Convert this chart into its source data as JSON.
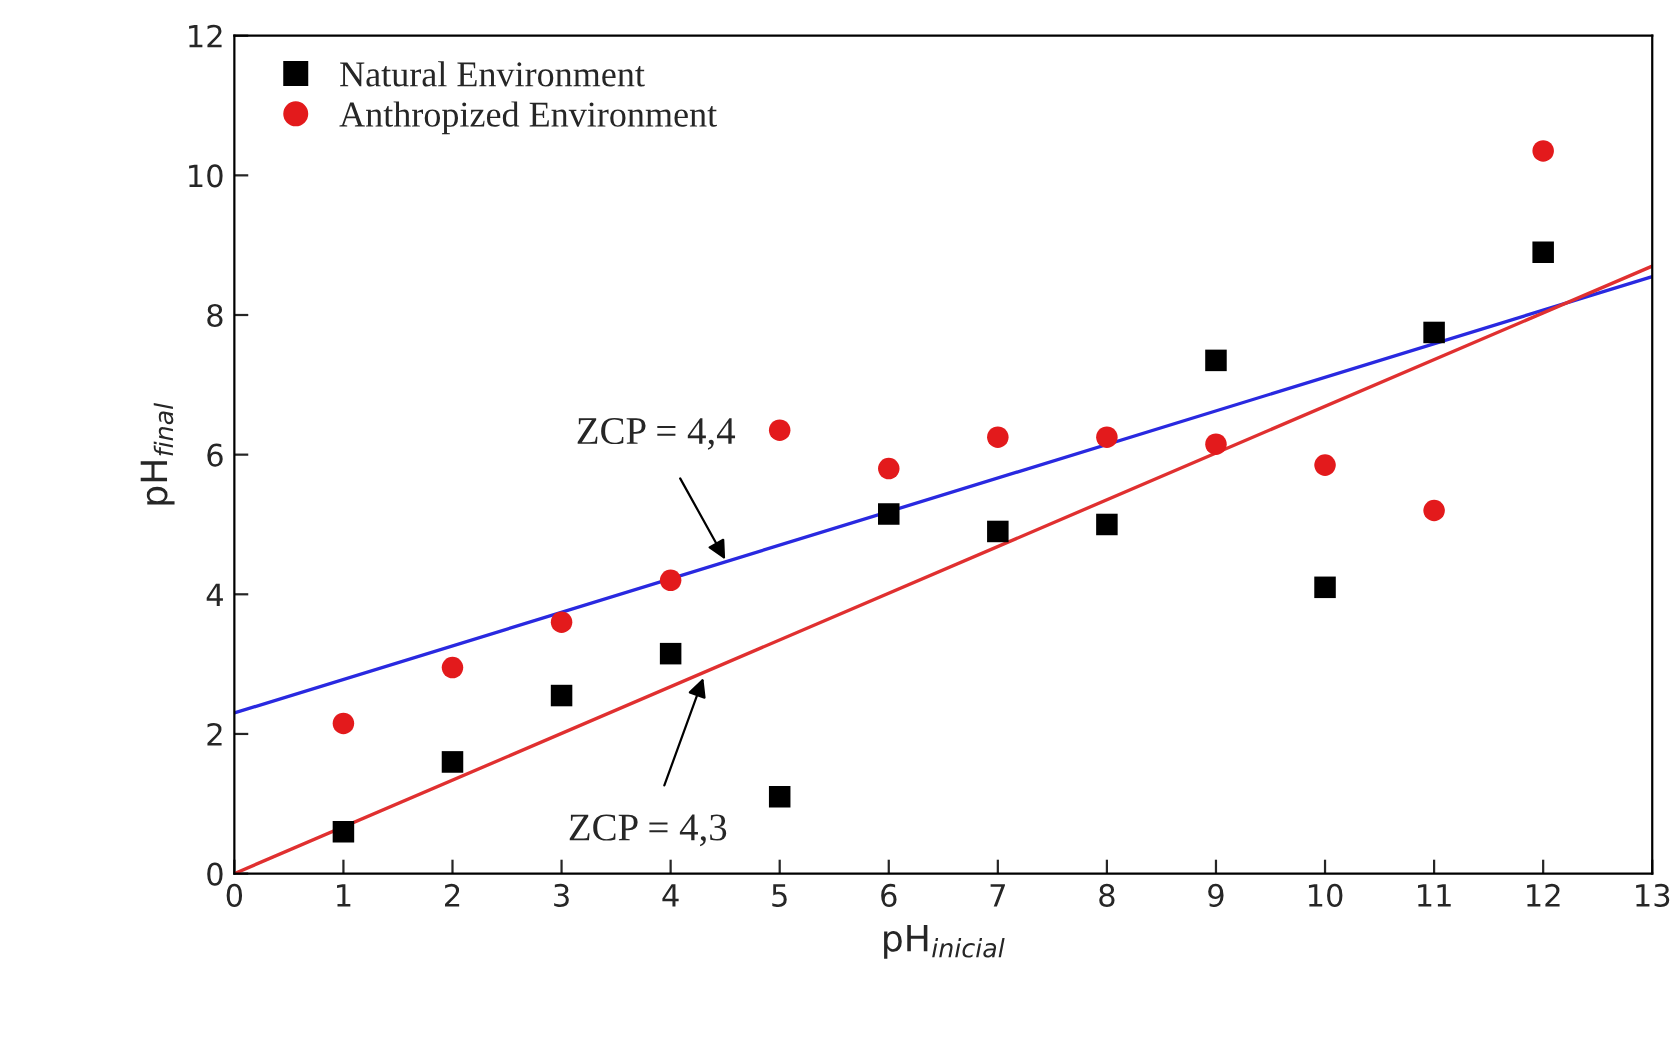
{
  "chart_data": {
    "type": "scatter",
    "xlabel": "pH$_{inicial}$",
    "ylabel": "pH$_{final}$",
    "xlim": [
      0,
      13
    ],
    "ylim": [
      0,
      12
    ],
    "xticks": [
      0,
      1,
      2,
      3,
      4,
      5,
      6,
      7,
      8,
      9,
      10,
      11,
      12,
      13
    ],
    "yticks": [
      0,
      2,
      4,
      6,
      8,
      10,
      12
    ],
    "grid": false,
    "legend": "top left",
    "series": [
      {
        "name": "Natural Environment",
        "marker": "square",
        "color": "#000000",
        "x": [
          1,
          2,
          3,
          4,
          5,
          6,
          7,
          8,
          9,
          10,
          11,
          12
        ],
        "values": [
          0.6,
          1.6,
          2.55,
          3.15,
          1.1,
          5.15,
          4.9,
          5.0,
          7.35,
          4.1,
          7.75,
          8.9
        ]
      },
      {
        "name": "Anthropized Environment",
        "marker": "circle",
        "color": "#e31a1c",
        "x": [
          1,
          2,
          3,
          4,
          5,
          6,
          7,
          8,
          9,
          10,
          11,
          12
        ],
        "values": [
          2.15,
          2.95,
          3.6,
          4.2,
          6.35,
          5.8,
          6.25,
          6.25,
          6.15,
          5.85,
          5.2,
          10.35
        ]
      },
      {
        "type": "line",
        "color": "#2929e0",
        "x": [
          0,
          13
        ],
        "values": [
          2.3,
          8.55
        ]
      },
      {
        "type": "line",
        "color": "#e03030",
        "x": [
          0,
          13
        ],
        "values": [
          0,
          8.7
        ]
      }
    ],
    "annotations": [
      {
        "text": "ZCP = 4,4",
        "x": 4.5,
        "y": 4.5
      },
      {
        "text": "ZCP = 4,3",
        "x": 4.3,
        "y": 2.8
      }
    ]
  }
}
